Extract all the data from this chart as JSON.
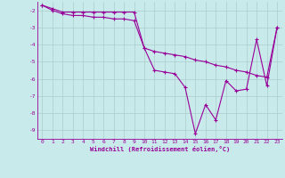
{
  "xlabel": "Windchill (Refroidissement éolien,°C)",
  "bg_color": "#c8eaea",
  "line_color": "#990099",
  "grid_color": "#aacccc",
  "hours": [
    0,
    1,
    2,
    3,
    4,
    5,
    6,
    7,
    8,
    9,
    10,
    11,
    12,
    13,
    14,
    15,
    16,
    17,
    18,
    19,
    20,
    21,
    22,
    23
  ],
  "windchill": [
    -1.7,
    -1.9,
    -2.1,
    -2.1,
    -2.1,
    -2.1,
    -2.1,
    -2.1,
    -2.1,
    -2.1,
    -4.2,
    -5.5,
    -5.6,
    -5.7,
    -6.5,
    -9.2,
    -7.5,
    -8.4,
    -6.1,
    -6.7,
    -6.6,
    -3.7,
    -6.4,
    -3.0
  ],
  "temperature": [
    -1.7,
    -2.0,
    -2.2,
    -2.3,
    -2.3,
    -2.4,
    -2.4,
    -2.5,
    -2.5,
    -2.6,
    -4.2,
    -4.4,
    -4.5,
    -4.6,
    -4.7,
    -4.9,
    -5.0,
    -5.2,
    -5.3,
    -5.5,
    -5.6,
    -5.8,
    -5.9,
    -3.0
  ],
  "ylim": [
    -9.5,
    -1.5
  ],
  "xlim": [
    -0.5,
    23.5
  ],
  "yticks": [
    -2,
    -3,
    -4,
    -5,
    -6,
    -7,
    -8,
    -9
  ],
  "xticks": [
    0,
    1,
    2,
    3,
    4,
    5,
    6,
    7,
    8,
    9,
    10,
    11,
    12,
    13,
    14,
    15,
    16,
    17,
    18,
    19,
    20,
    21,
    22,
    23
  ],
  "tick_fontsize": 4.5,
  "xlabel_fontsize": 5.0,
  "marker_size": 2.5,
  "line_width": 0.8
}
